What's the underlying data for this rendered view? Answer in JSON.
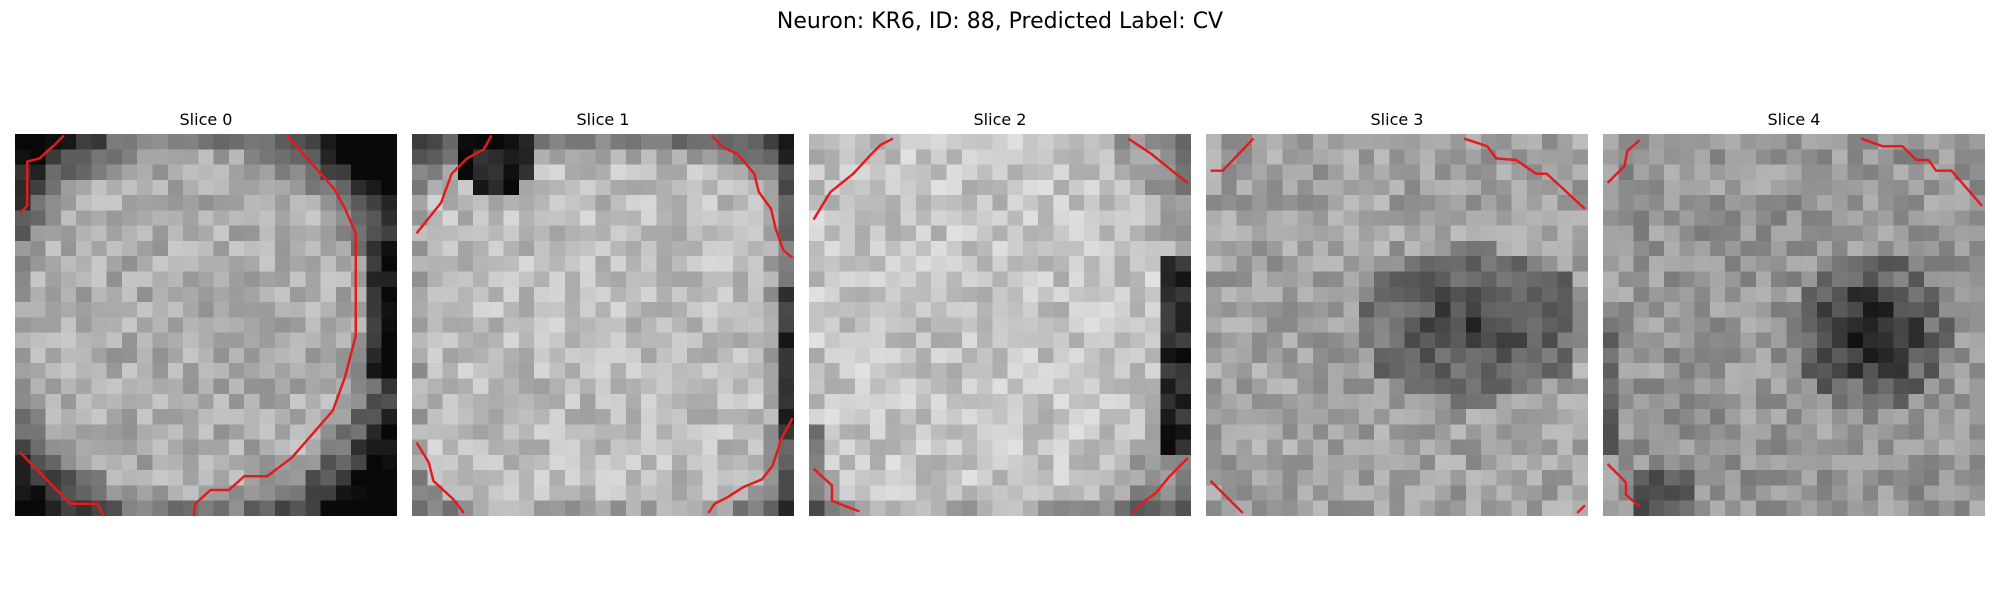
{
  "figure": {
    "title": "Neuron: KR6, ID: 88, Predicted Label: CV"
  },
  "style": {
    "contour_color": "#e41a1c",
    "colormap": "grayscale"
  },
  "slices": [
    {
      "title": "Slice 0"
    },
    {
      "title": "Slice 1"
    },
    {
      "title": "Slice 2"
    },
    {
      "title": "Slice 3"
    },
    {
      "title": "Slice 4"
    }
  ]
}
